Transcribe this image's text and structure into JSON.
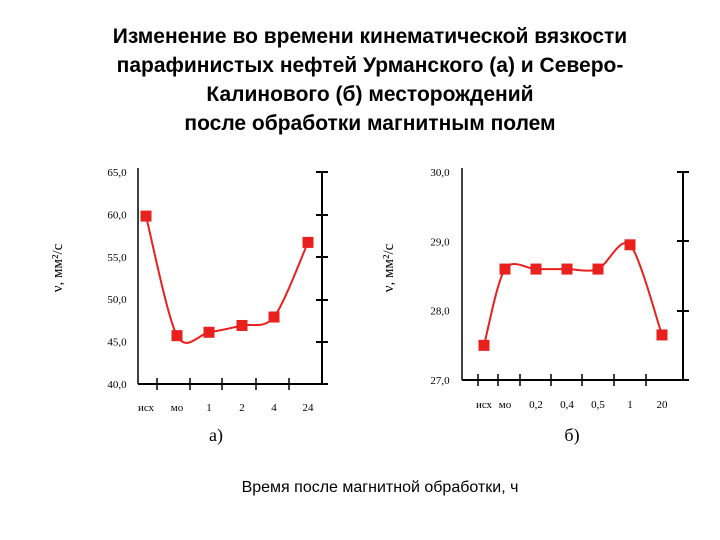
{
  "title_lines": [
    "Изменение во времени кинематической вязкости",
    "парафинистых нефтей Урманского (а) и Северо-",
    "Калинового (б) месторождений",
    "после обработки магнитным полем"
  ],
  "xlabel": "Время после магнитной обработки, ч",
  "colors": {
    "series": "#e8201e",
    "axis": "#000000"
  },
  "chart_data": [
    {
      "type": "line",
      "panel_label": "а)",
      "categories": [
        "исх",
        "мо",
        "1",
        "2",
        "4",
        "24"
      ],
      "ylabel": "ν, мм²/с",
      "yticks": [
        "40,0",
        "45,0",
        "50,0",
        "55,0",
        "60,0",
        "65,0"
      ],
      "ylim": [
        40,
        65
      ],
      "series": [
        {
          "values": [
            59.8,
            45.7,
            46.1,
            46.9,
            47.9,
            56.7
          ]
        }
      ]
    },
    {
      "type": "line",
      "panel_label": "б)",
      "categories": [
        "исх",
        "мо",
        "0,2",
        "0,4",
        "0,5",
        "1",
        "20"
      ],
      "ylabel": "ν, мм²/с",
      "yticks": [
        "27,0",
        "28,0",
        "29,0",
        "30,0"
      ],
      "ylim": [
        27,
        30
      ],
      "series": [
        {
          "values": [
            27.5,
            28.6,
            28.6,
            28.6,
            28.6,
            28.95,
            27.65
          ]
        }
      ]
    }
  ]
}
